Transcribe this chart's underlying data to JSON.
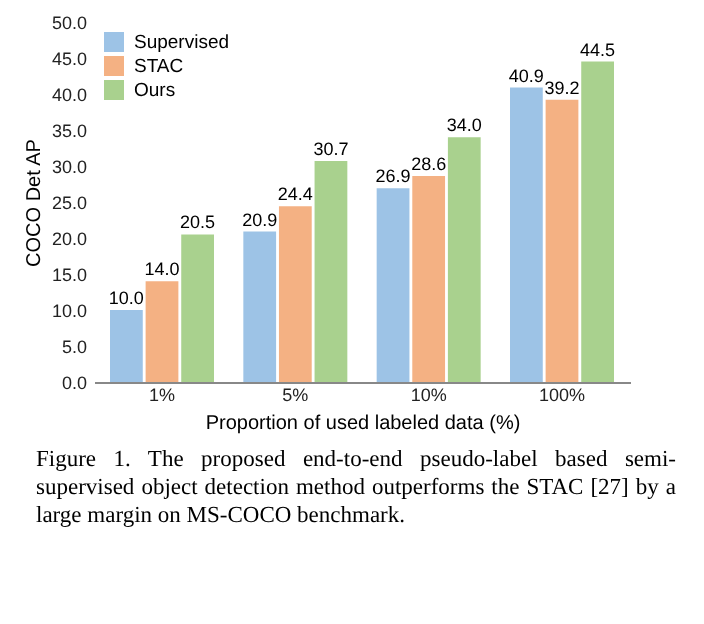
{
  "chart_data": {
    "type": "bar",
    "xlabel": "Proportion of used labeled data (%)",
    "ylabel": "COCO Det AP",
    "categories": [
      "1%",
      "5%",
      "10%",
      "100%"
    ],
    "series": [
      {
        "name": "Supervised",
        "color": "#9dc3e6",
        "values": [
          10.0,
          20.9,
          26.9,
          40.9
        ],
        "value_labels": [
          "10.0",
          "20.9",
          "26.9",
          "40.9"
        ]
      },
      {
        "name": "STAC",
        "color": "#f4b183",
        "values": [
          14.0,
          24.4,
          28.6,
          39.2
        ],
        "value_labels": [
          "14.0",
          "24.4",
          "28.6",
          "39.2"
        ]
      },
      {
        "name": "Ours",
        "color": "#a9d18e",
        "values": [
          20.5,
          30.7,
          34.0,
          44.5
        ],
        "value_labels": [
          "20.5",
          "30.7",
          "34.0",
          "44.5"
        ]
      }
    ],
    "ylim": [
      0,
      50
    ],
    "yticks": [
      {
        "value": 0,
        "label": "0.0"
      },
      {
        "value": 5,
        "label": "5.0"
      },
      {
        "value": 10,
        "label": "10.0"
      },
      {
        "value": 15,
        "label": "15.0"
      },
      {
        "value": 20,
        "label": "20.0"
      },
      {
        "value": 25,
        "label": "25.0"
      },
      {
        "value": 30,
        "label": "30.0"
      },
      {
        "value": 35,
        "label": "35.0"
      },
      {
        "value": 40,
        "label": "40.0"
      },
      {
        "value": 45,
        "label": "45.0"
      },
      {
        "value": 50,
        "label": "50.0"
      }
    ],
    "grid": false,
    "legend": "top left",
    "annotations": [
      "Figure 1. The proposed end-to-end pseudo-label based semi-supervised object detection method outperforms the STAC [27] by a large margin on MS-COCO benchmark."
    ]
  }
}
